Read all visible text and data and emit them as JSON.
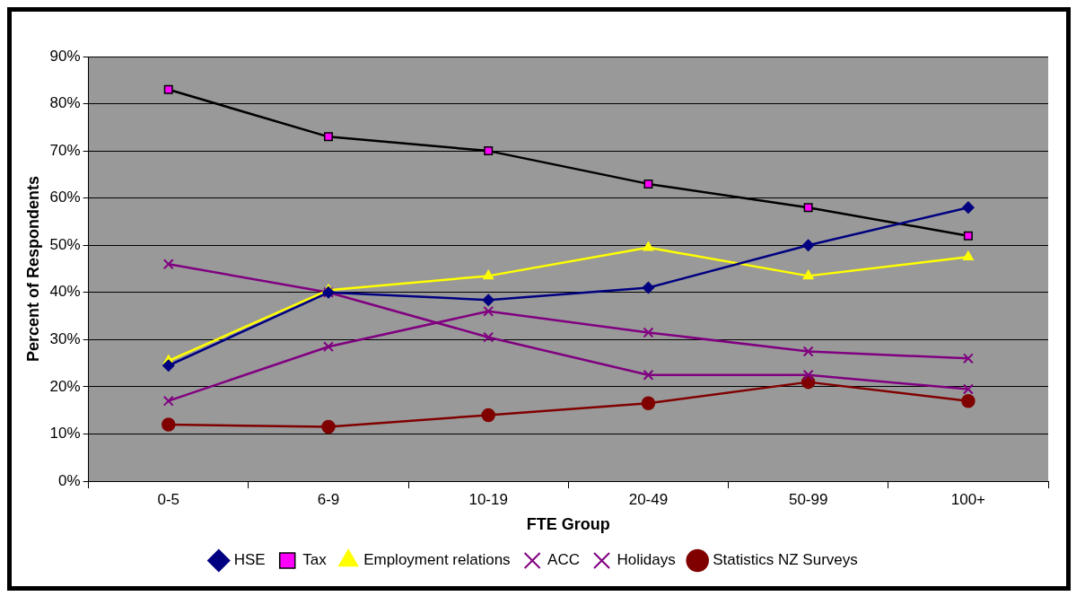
{
  "chart_data": {
    "type": "line",
    "xlabel": "FTE Group",
    "ylabel": "Percent of Respondents",
    "categories": [
      "0-5",
      "6-9",
      "10-19",
      "20-49",
      "50-99",
      "100+"
    ],
    "ylim": [
      0,
      90
    ],
    "yticks": [
      {
        "value": 0,
        "label": "0%"
      },
      {
        "value": 10,
        "label": "10%"
      },
      {
        "value": 20,
        "label": "20%"
      },
      {
        "value": 30,
        "label": "30%"
      },
      {
        "value": 40,
        "label": "40%"
      },
      {
        "value": 50,
        "label": "50%"
      },
      {
        "value": 60,
        "label": "60%"
      },
      {
        "value": 70,
        "label": "70%"
      },
      {
        "value": 80,
        "label": "80%"
      },
      {
        "value": 90,
        "label": "90%"
      }
    ],
    "grid": "y",
    "legend": "bottom",
    "series": [
      {
        "name": "HSE",
        "color": "#000080",
        "marker": "diamond",
        "values": [
          24.5,
          40,
          38.4,
          41,
          50,
          58
        ]
      },
      {
        "name": "Tax",
        "color": "#000000",
        "marker": "square",
        "values": [
          83,
          73,
          70,
          63,
          58,
          52
        ]
      },
      {
        "name": "Employment relations",
        "color": "#ffff00",
        "marker": "triangle",
        "values": [
          25.5,
          40.5,
          43.5,
          49.5,
          43.5,
          47.5
        ]
      },
      {
        "name": "ACC",
        "color": "#800080",
        "marker": "cross",
        "values": [
          46,
          40,
          30.5,
          22.5,
          22.5,
          19.5
        ]
      },
      {
        "name": "Holidays",
        "color": "#800080",
        "marker": "cross",
        "values": [
          17,
          28.5,
          36,
          31.5,
          27.5,
          26
        ]
      },
      {
        "name": "Statistics NZ Surveys",
        "color": "#800000",
        "marker": "circle",
        "values": [
          12,
          11.5,
          14,
          16.5,
          21,
          17
        ]
      }
    ]
  }
}
